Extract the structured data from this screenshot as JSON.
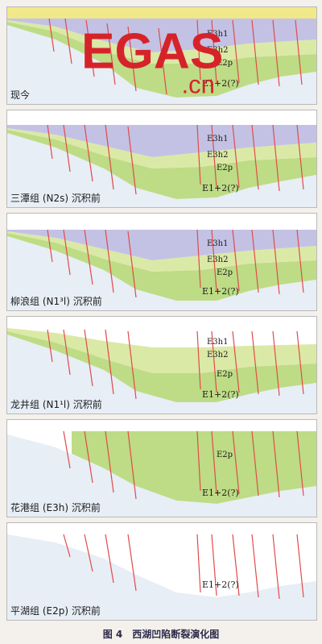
{
  "figure": {
    "title": "图 4　西湖凹陷断裂演化图"
  },
  "watermark": {
    "text": "EGAS.cn",
    "brand_color": "#d6232a"
  },
  "colors": {
    "basement": "#e7eef6",
    "e2p": "#bddc85",
    "e3h": "#dbe9a6",
    "young_layers": "#c3c2e4",
    "fault": "#e24a4a",
    "sea": "#f1e88a"
  },
  "layer_labels": {
    "e12": "E1+2(?)",
    "e2p": "E2p",
    "e3h1": "E3h1",
    "e3h2": "E3h2"
  },
  "panels": [
    {
      "caption": "现今"
    },
    {
      "caption": "三潭组 (N2s) 沉积前"
    },
    {
      "caption": "柳浪组 (N1³l) 沉积前"
    },
    {
      "caption": "龙井组 (N1¹l) 沉积前"
    },
    {
      "caption": "花港组 (E3h) 沉积前"
    },
    {
      "caption": "平湖组 (E2p) 沉积前"
    }
  ]
}
